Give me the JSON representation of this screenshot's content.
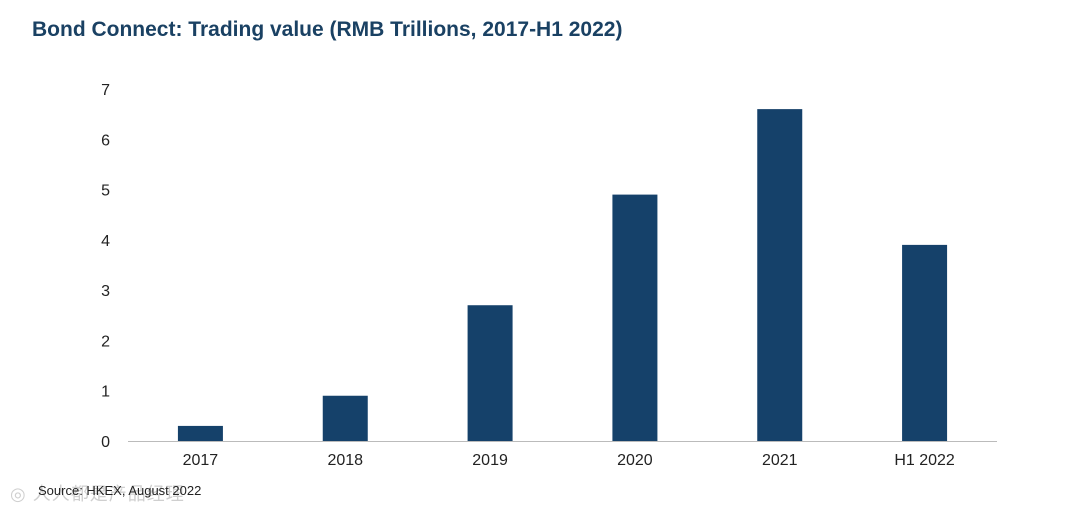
{
  "title": "Bond Connect: Trading value (RMB Trillions, 2017-H1 2022)",
  "source": "Source: HKEX, August 2022",
  "colors": {
    "bar": "#15416a",
    "axis": "#bbbbbb",
    "title": "#1a4163"
  },
  "chart_data": {
    "type": "bar",
    "title": "Bond Connect: Trading value (RMB Trillions, 2017-H1 2022)",
    "xlabel": "",
    "ylabel": "",
    "categories": [
      "2017",
      "2018",
      "2019",
      "2020",
      "2021",
      "H1 2022"
    ],
    "values": [
      0.3,
      0.9,
      2.7,
      4.9,
      6.6,
      3.9
    ],
    "ylim": [
      0,
      7
    ],
    "yticks": [
      0,
      1,
      2,
      3,
      4,
      5,
      6,
      7
    ],
    "grid": false,
    "legend": "none"
  }
}
